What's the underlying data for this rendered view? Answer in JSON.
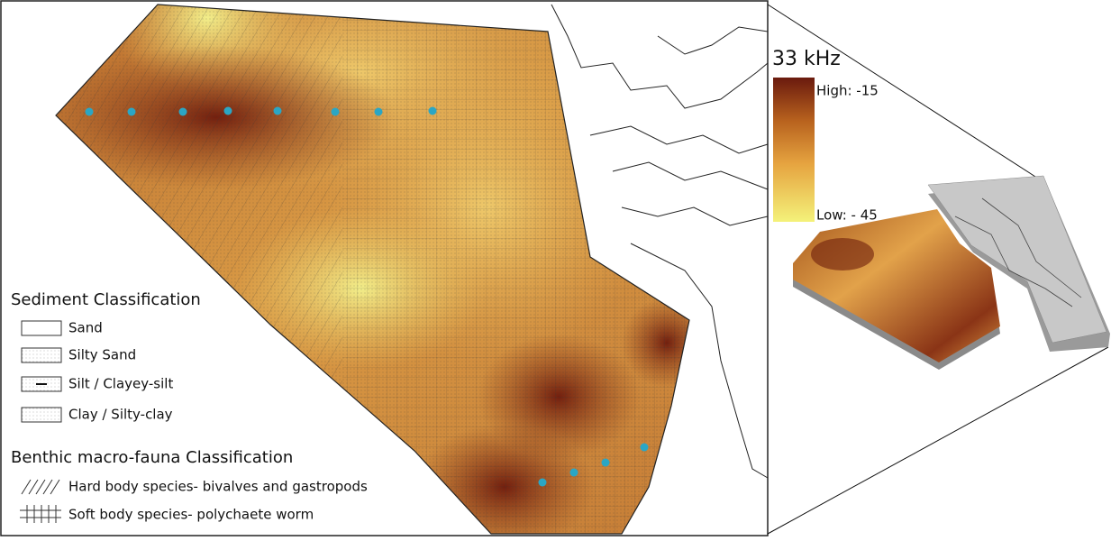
{
  "colorbar": {
    "title": "33 kHz",
    "high": "High: -15",
    "low": "Low: - 45"
  },
  "legend": {
    "sediment_title": "Sediment Classification",
    "sediment_items": [
      "Sand",
      "Silty Sand",
      "Silt / Clayey-silt",
      "Clay / Silty-clay"
    ],
    "fauna_title": "Benthic macro-fauna Classification",
    "fauna_items": [
      "Hard body species- bivalves and gastropods",
      "Soft body species- polychaete worm"
    ]
  }
}
